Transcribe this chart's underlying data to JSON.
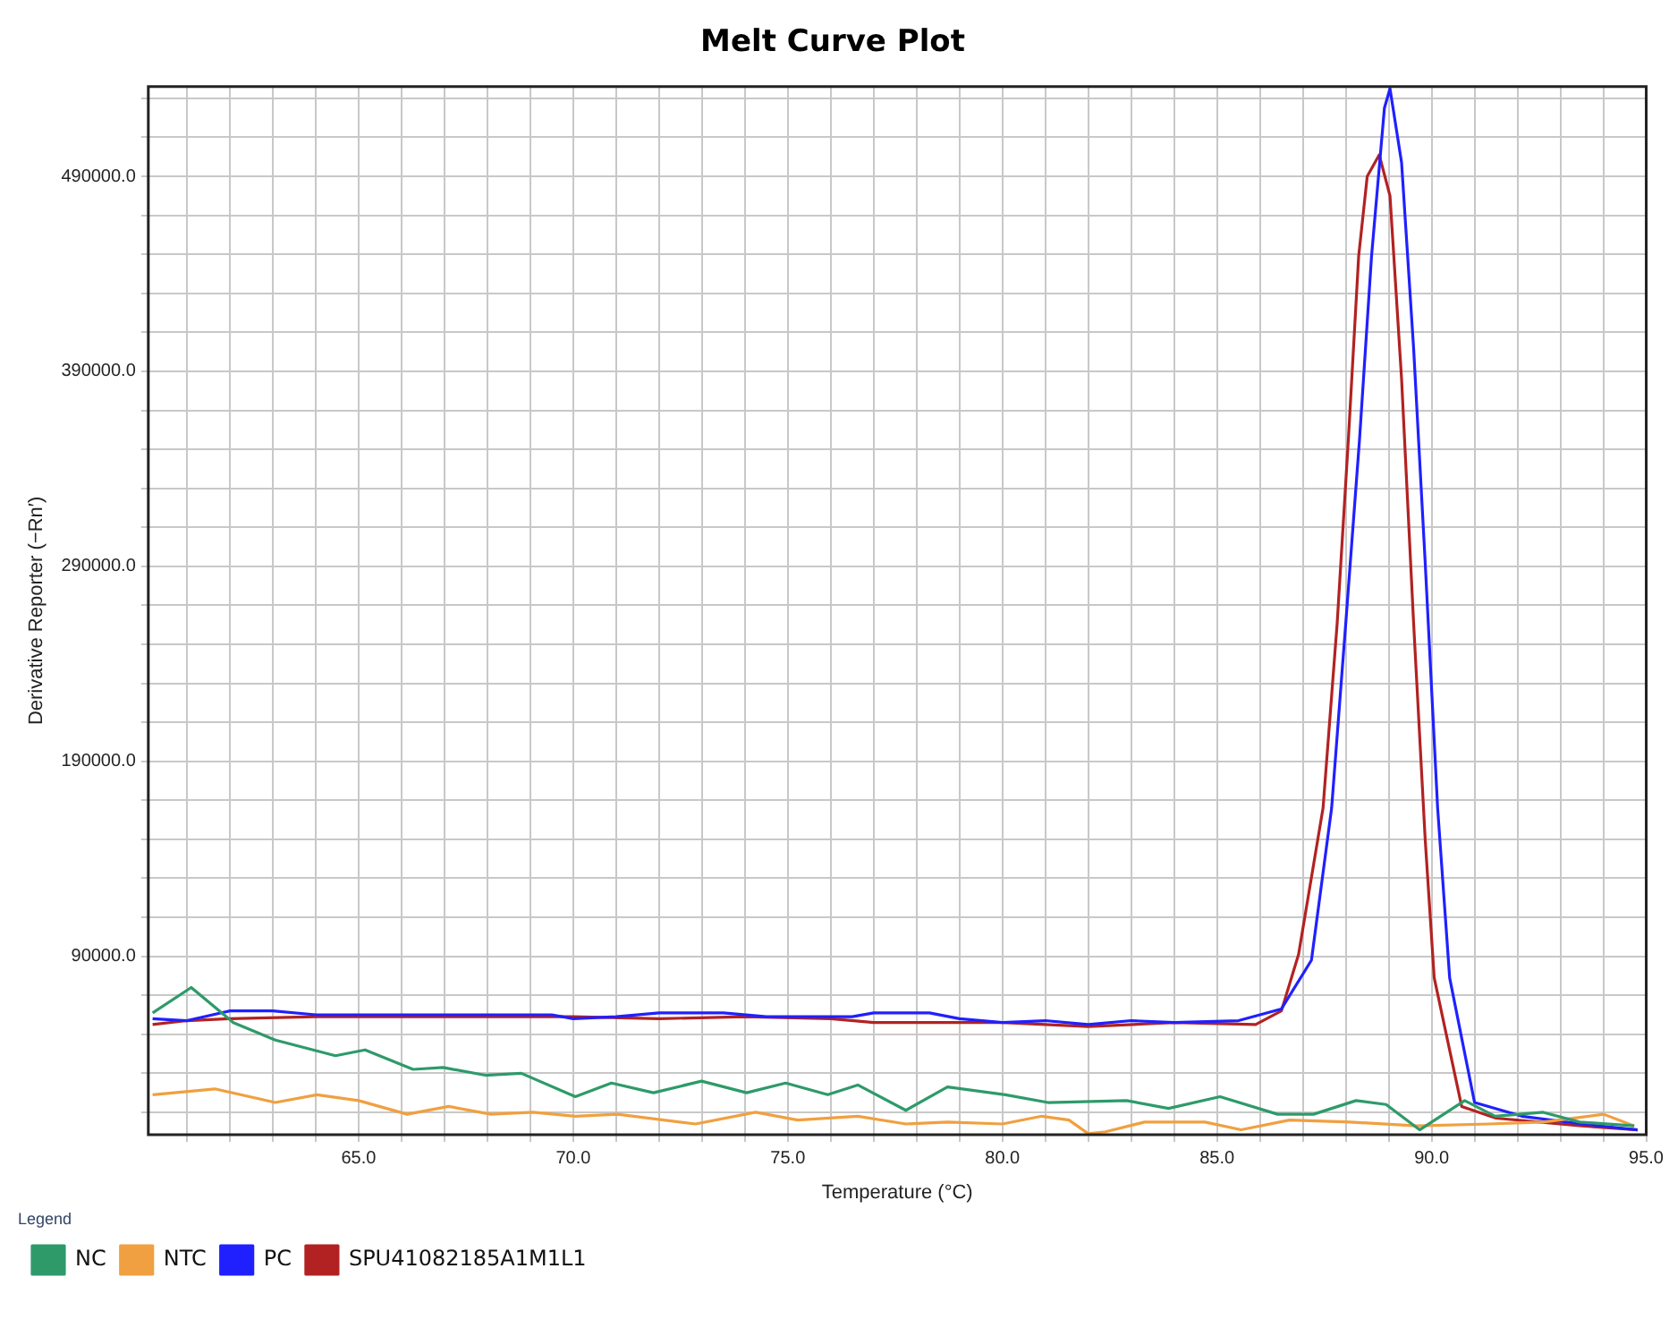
{
  "chart_data": {
    "type": "line",
    "title": "Melt Curve Plot",
    "xlabel": "Temperature (°C)",
    "ylabel": "Derivative Reporter (−Rn′)",
    "legend_title": "Legend",
    "legend": "bottom",
    "grid": true,
    "marker": "none",
    "xlim": [
      60.1,
      95
    ],
    "xticks": [
      {
        "value": 61,
        "label": null
      },
      {
        "value": 62,
        "label": null
      },
      {
        "value": 63,
        "label": null
      },
      {
        "value": 64,
        "label": null
      },
      {
        "value": 65,
        "label": "65.0"
      },
      {
        "value": 66,
        "label": null
      },
      {
        "value": 67,
        "label": null
      },
      {
        "value": 68,
        "label": null
      },
      {
        "value": 69,
        "label": null
      },
      {
        "value": 70,
        "label": "70.0"
      },
      {
        "value": 71,
        "label": null
      },
      {
        "value": 72,
        "label": null
      },
      {
        "value": 73,
        "label": null
      },
      {
        "value": 74,
        "label": null
      },
      {
        "value": 75,
        "label": "75.0"
      },
      {
        "value": 76,
        "label": null
      },
      {
        "value": 77,
        "label": null
      },
      {
        "value": 78,
        "label": null
      },
      {
        "value": 79,
        "label": null
      },
      {
        "value": 80,
        "label": "80.0"
      },
      {
        "value": 81,
        "label": null
      },
      {
        "value": 82,
        "label": null
      },
      {
        "value": 83,
        "label": null
      },
      {
        "value": 84,
        "label": null
      },
      {
        "value": 85,
        "label": "85.0"
      },
      {
        "value": 86,
        "label": null
      },
      {
        "value": 87,
        "label": null
      },
      {
        "value": 88,
        "label": null
      },
      {
        "value": 89,
        "label": null
      },
      {
        "value": 90,
        "label": "90.0"
      },
      {
        "value": 91,
        "label": null
      },
      {
        "value": 92,
        "label": null
      },
      {
        "value": 93,
        "label": null
      },
      {
        "value": 94,
        "label": null
      },
      {
        "value": 95,
        "label": "95.0"
      }
    ],
    "ylim": [
      -1500,
      536000
    ],
    "yticks": [
      {
        "value": 10000,
        "label": null
      },
      {
        "value": 30000,
        "label": null
      },
      {
        "value": 50000,
        "label": null
      },
      {
        "value": 70000,
        "label": null
      },
      {
        "value": 90000,
        "label": "90000.0"
      },
      {
        "value": 110000,
        "label": null
      },
      {
        "value": 130000,
        "label": null
      },
      {
        "value": 150000,
        "label": null
      },
      {
        "value": 170000,
        "label": null
      },
      {
        "value": 190000,
        "label": "190000.0"
      },
      {
        "value": 210000,
        "label": null
      },
      {
        "value": 230000,
        "label": null
      },
      {
        "value": 250000,
        "label": null
      },
      {
        "value": 270000,
        "label": null
      },
      {
        "value": 290000,
        "label": "290000.0"
      },
      {
        "value": 310000,
        "label": null
      },
      {
        "value": 330000,
        "label": null
      },
      {
        "value": 350000,
        "label": null
      },
      {
        "value": 370000,
        "label": null
      },
      {
        "value": 390000,
        "label": "390000.0"
      },
      {
        "value": 410000,
        "label": null
      },
      {
        "value": 430000,
        "label": null
      },
      {
        "value": 450000,
        "label": null
      },
      {
        "value": 470000,
        "label": null
      },
      {
        "value": 490000,
        "label": "490000.0"
      },
      {
        "value": 510000,
        "label": null
      },
      {
        "value": 530000,
        "label": null
      }
    ],
    "series": [
      {
        "name": "NC",
        "color": "#2e9a6a",
        "x": [
          60.2,
          61.1,
          62.08,
          63.06,
          64.46,
          65.15,
          66.27,
          66.97,
          67.95,
          68.79,
          70.05,
          70.89,
          71.87,
          72.99,
          74.04,
          74.95,
          75.93,
          76.63,
          77.75,
          78.72,
          80.07,
          81.06,
          82.89,
          83.87,
          85.07,
          86.41,
          87.25,
          88.24,
          88.94,
          89.72,
          90.77,
          91.48,
          92.6,
          93.45,
          94.72
        ],
        "values": [
          61000,
          74000,
          56000,
          47000,
          39000,
          42000,
          32000,
          33000,
          29000,
          30000,
          18000,
          25000,
          20000,
          26000,
          20000,
          25000,
          19000,
          24000,
          11000,
          23000,
          19000,
          15000,
          16000,
          12000,
          18000,
          9000,
          9000,
          16000,
          14000,
          1000,
          16000,
          8000,
          10000,
          5000,
          3000
        ]
      },
      {
        "name": "NTC",
        "color": "#f0a040",
        "x": [
          60.2,
          61.65,
          63.06,
          64.03,
          65.0,
          66.13,
          67.1,
          68.08,
          69.06,
          70.05,
          71.03,
          72.85,
          74.25,
          75.23,
          76.63,
          77.75,
          78.72,
          80.0,
          80.92,
          81.55,
          82.0,
          82.4,
          83.31,
          84.72,
          85.56,
          86.69,
          88.1,
          89.65,
          91.34,
          92.6,
          94.01,
          94.72
        ],
        "values": [
          19000,
          22000,
          15000,
          19000,
          16000,
          9000,
          13000,
          9000,
          10000,
          8000,
          9000,
          4000,
          10000,
          6000,
          8000,
          4000,
          5000,
          4000,
          8000,
          6000,
          -1000,
          0,
          5000,
          5000,
          1000,
          6000,
          5000,
          3000,
          4000,
          5000,
          9000,
          3000
        ]
      },
      {
        "name": "PC",
        "color": "#2020ff",
        "x": [
          60.2,
          61.0,
          62.0,
          63.0,
          64.0,
          66.0,
          68.0,
          69.5,
          70.0,
          71.0,
          72.0,
          73.5,
          74.5,
          76.5,
          77.0,
          78.3,
          79.0,
          80.0,
          81.0,
          82.0,
          83.0,
          84.0,
          85.5,
          86.5,
          87.2,
          87.67,
          88.0,
          88.32,
          88.6,
          88.9,
          89.03,
          89.3,
          89.58,
          89.85,
          90.14,
          90.42,
          91.0,
          92.1,
          93.5,
          94.8
        ],
        "values": [
          58000,
          57000,
          62000,
          62000,
          60000,
          60000,
          60000,
          60000,
          58000,
          59000,
          61000,
          61000,
          59000,
          59000,
          61000,
          61000,
          58000,
          56000,
          57000,
          55000,
          57000,
          56000,
          57000,
          63000,
          88000,
          166000,
          261000,
          355000,
          449000,
          525000,
          535000,
          497000,
          402000,
          292000,
          166000,
          79000,
          15000,
          8000,
          4000,
          1000
        ]
      },
      {
        "name": "SPU41082185A1M1L1",
        "color": "#b22222",
        "x": [
          60.2,
          61.0,
          62.0,
          64.0,
          66.0,
          68.0,
          70.0,
          72.0,
          74.0,
          76.0,
          77.0,
          78.5,
          80.0,
          82.0,
          84.0,
          85.9,
          86.5,
          86.9,
          87.47,
          87.8,
          88.06,
          88.3,
          88.5,
          88.78,
          89.03,
          89.3,
          89.58,
          89.85,
          90.06,
          90.7,
          91.5,
          93.5,
          94.8
        ],
        "values": [
          55000,
          57000,
          58000,
          59000,
          59000,
          59000,
          59000,
          58000,
          59000,
          58000,
          56000,
          56000,
          56000,
          54000,
          56000,
          55000,
          62000,
          91000,
          166000,
          261000,
          355000,
          449000,
          490000,
          501000,
          480000,
          386000,
          261000,
          150000,
          79000,
          13000,
          7000,
          3000,
          1000
        ]
      }
    ]
  }
}
